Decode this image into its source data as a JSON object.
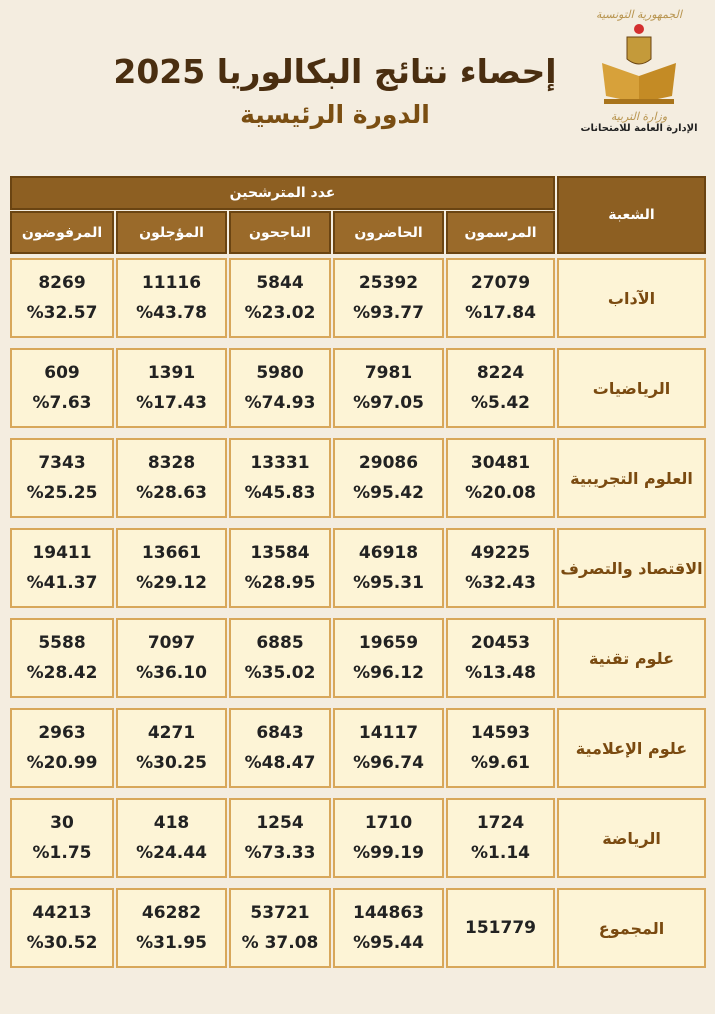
{
  "header": {
    "title": "إحصاء نتائج البكالوريا 2025",
    "subtitle": "الدورة الرئيسية",
    "logo": {
      "republic": "الجمهورية التونسية",
      "ministry": "وزارة التربية",
      "directorate": "الإدارة العامة للامتحانات"
    }
  },
  "table": {
    "branch_header": "الشعبة",
    "group_header": "عدد المترشحين",
    "columns": [
      "المرسمون",
      "الحاضرون",
      "الناجحون",
      "المؤجلون",
      "المرفوضون"
    ],
    "rows": [
      {
        "branch": "الآداب",
        "cells": [
          [
            "27079",
            "%17.84"
          ],
          [
            "25392",
            "%93.77"
          ],
          [
            "5844",
            "%23.02"
          ],
          [
            "11116",
            "%43.78"
          ],
          [
            "8269",
            "%32.57"
          ]
        ]
      },
      {
        "branch": "الرياضيات",
        "cells": [
          [
            "8224",
            "%5.42"
          ],
          [
            "7981",
            "%97.05"
          ],
          [
            "5980",
            "%74.93"
          ],
          [
            "1391",
            "%17.43"
          ],
          [
            "609",
            "%7.63"
          ]
        ]
      },
      {
        "branch": "العلوم التجريبية",
        "cells": [
          [
            "30481",
            "%20.08"
          ],
          [
            "29086",
            "%95.42"
          ],
          [
            "13331",
            "%45.83"
          ],
          [
            "8328",
            "%28.63"
          ],
          [
            "7343",
            "%25.25"
          ]
        ]
      },
      {
        "branch": "الاقتصاد والتصرف",
        "cells": [
          [
            "49225",
            "%32.43"
          ],
          [
            "46918",
            "%95.31"
          ],
          [
            "13584",
            "%28.95"
          ],
          [
            "13661",
            "%29.12"
          ],
          [
            "19411",
            "%41.37"
          ]
        ]
      },
      {
        "branch": "علوم تقنية",
        "cells": [
          [
            "20453",
            "%13.48"
          ],
          [
            "19659",
            "%96.12"
          ],
          [
            "6885",
            "%35.02"
          ],
          [
            "7097",
            "%36.10"
          ],
          [
            "5588",
            "%28.42"
          ]
        ]
      },
      {
        "branch": "علوم الإعلامية",
        "cells": [
          [
            "14593",
            "%9.61"
          ],
          [
            "14117",
            "%96.74"
          ],
          [
            "6843",
            "%48.47"
          ],
          [
            "4271",
            "%30.25"
          ],
          [
            "2963",
            "%20.99"
          ]
        ]
      },
      {
        "branch": "الرياضة",
        "cells": [
          [
            "1724",
            "%1.14"
          ],
          [
            "1710",
            "%99.19"
          ],
          [
            "1254",
            "%73.33"
          ],
          [
            "418",
            "%24.44"
          ],
          [
            "30",
            "%1.75"
          ]
        ]
      },
      {
        "branch": "المجموع",
        "cells": [
          [
            "151779"
          ],
          [
            "144863",
            "%95.44"
          ],
          [
            "53721",
            "% 37.08"
          ],
          [
            "46282",
            "%31.95"
          ],
          [
            "44213",
            "%30.52"
          ]
        ]
      }
    ]
  },
  "colors": {
    "header_bg": "#8d5f22",
    "cell_bg": "#fdf4d6",
    "cell_border": "#d8a75a",
    "title": "#4a2e10",
    "page_bg": "#f4ede0"
  }
}
